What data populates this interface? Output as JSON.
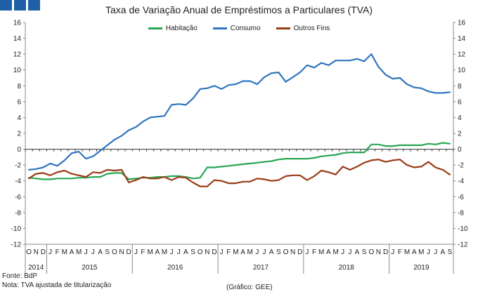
{
  "chart_data": {
    "type": "line",
    "title": "Taxa de Variação Anual de Empréstimos a Particulares (TVA)",
    "ylim": [
      -12,
      16
    ],
    "yticks": [
      -12,
      -10,
      -8,
      -6,
      -4,
      -2,
      0,
      2,
      4,
      6,
      8,
      10,
      12,
      14,
      16
    ],
    "ytick_labels": [
      "-12",
      "-10",
      "-8",
      "-6",
      "-4",
      "-2",
      "0",
      "2",
      "4",
      "6",
      "8",
      "10",
      "12",
      "14",
      "16"
    ],
    "grid": false,
    "legend_position": "top-center",
    "x": [
      "2014-10",
      "2014-11",
      "2014-12",
      "2015-01",
      "2015-02",
      "2015-03",
      "2015-04",
      "2015-05",
      "2015-06",
      "2015-07",
      "2015-08",
      "2015-09",
      "2015-10",
      "2015-11",
      "2015-12",
      "2016-01",
      "2016-02",
      "2016-03",
      "2016-04",
      "2016-05",
      "2016-06",
      "2016-07",
      "2016-08",
      "2016-09",
      "2016-10",
      "2016-11",
      "2016-12",
      "2017-01",
      "2017-02",
      "2017-03",
      "2017-04",
      "2017-05",
      "2017-06",
      "2017-07",
      "2017-08",
      "2017-09",
      "2017-10",
      "2017-11",
      "2017-12",
      "2018-01",
      "2018-02",
      "2018-03",
      "2018-04",
      "2018-05",
      "2018-06",
      "2018-07",
      "2018-08",
      "2018-09",
      "2018-10",
      "2018-11",
      "2018-12",
      "2019-01",
      "2019-02",
      "2019-03",
      "2019-04",
      "2019-05",
      "2019-06",
      "2019-07",
      "2019-08",
      "2019-09"
    ],
    "month_labels": [
      "O",
      "N",
      "D",
      "J",
      "F",
      "M",
      "A",
      "M",
      "J",
      "J",
      "A",
      "S",
      "O",
      "N",
      "D",
      "J",
      "F",
      "M",
      "A",
      "M",
      "J",
      "J",
      "A",
      "S",
      "O",
      "N",
      "D",
      "J",
      "F",
      "M",
      "A",
      "M",
      "J",
      "J",
      "A",
      "S",
      "O",
      "N",
      "D",
      "J",
      "F",
      "M",
      "A",
      "M",
      "J",
      "J",
      "A",
      "S",
      "O",
      "N",
      "D",
      "J",
      "F",
      "M",
      "A",
      "M",
      "J",
      "J",
      "A",
      "S"
    ],
    "year_labels": [
      {
        "label": "2014",
        "from": 0,
        "to": 2
      },
      {
        "label": "2015",
        "from": 3,
        "to": 14
      },
      {
        "label": "2016",
        "from": 15,
        "to": 26
      },
      {
        "label": "2017",
        "from": 27,
        "to": 38
      },
      {
        "label": "2018",
        "from": 39,
        "to": 50
      },
      {
        "label": "2019",
        "from": 51,
        "to": 59
      }
    ],
    "series": [
      {
        "name": "Habitação",
        "color": "#2aa653",
        "values": [
          -3.6,
          -3.7,
          -3.8,
          -3.8,
          -3.7,
          -3.7,
          -3.7,
          -3.6,
          -3.6,
          -3.5,
          -3.5,
          -3.1,
          -3.0,
          -3.0,
          -3.8,
          -3.7,
          -3.6,
          -3.6,
          -3.5,
          -3.5,
          -3.4,
          -3.4,
          -3.5,
          -3.7,
          -3.6,
          -2.3,
          -2.3,
          -2.2,
          -2.1,
          -2.0,
          -1.9,
          -1.8,
          -1.7,
          -1.6,
          -1.5,
          -1.3,
          -1.2,
          -1.2,
          -1.2,
          -1.2,
          -1.1,
          -0.9,
          -0.8,
          -0.7,
          -0.5,
          -0.4,
          -0.4,
          -0.4,
          0.6,
          0.6,
          0.4,
          0.4,
          0.5,
          0.5,
          0.5,
          0.5,
          0.7,
          0.6,
          0.8,
          0.7
        ]
      },
      {
        "name": "Consumo",
        "color": "#2e75c0",
        "values": [
          -2.6,
          -2.5,
          -2.3,
          -1.8,
          -2.1,
          -1.4,
          -0.5,
          -0.3,
          -1.2,
          -0.9,
          -0.2,
          0.5,
          1.2,
          1.7,
          2.4,
          2.8,
          3.5,
          4.0,
          4.1,
          4.2,
          5.6,
          5.7,
          5.6,
          6.4,
          7.6,
          7.7,
          8.0,
          7.6,
          8.1,
          8.2,
          8.6,
          8.6,
          8.2,
          9.1,
          9.6,
          9.7,
          8.5,
          9.1,
          9.7,
          10.6,
          10.3,
          10.9,
          10.6,
          11.2,
          11.2,
          11.2,
          11.4,
          11.1,
          12.0,
          10.4,
          9.4,
          8.9,
          9.0,
          8.2,
          7.8,
          7.7,
          7.3,
          7.1,
          7.1,
          7.2
        ]
      },
      {
        "name": "Outros Fins",
        "color": "#9b3b18",
        "values": [
          -3.7,
          -3.1,
          -3.0,
          -3.3,
          -2.9,
          -2.7,
          -3.1,
          -3.3,
          -3.5,
          -2.9,
          -3.0,
          -2.6,
          -2.7,
          -2.6,
          -4.2,
          -3.9,
          -3.5,
          -3.7,
          -3.7,
          -3.5,
          -3.9,
          -3.5,
          -3.6,
          -4.2,
          -4.7,
          -4.7,
          -3.9,
          -4.0,
          -4.3,
          -4.3,
          -4.1,
          -4.1,
          -3.7,
          -3.8,
          -4.0,
          -3.9,
          -3.4,
          -3.3,
          -3.3,
          -3.9,
          -3.4,
          -2.7,
          -2.9,
          -3.2,
          -2.2,
          -2.6,
          -2.2,
          -1.7,
          -1.4,
          -1.3,
          -1.6,
          -1.4,
          -1.3,
          -2.0,
          -2.3,
          -2.2,
          -1.6,
          -2.3,
          -2.6,
          -3.2
        ]
      }
    ]
  },
  "footer": {
    "source": "Fonte: BdP",
    "note": "Nota: TVA ajustada de titularização",
    "credit": "(Gráfico: GEE)"
  },
  "logo_color": "#1f5fa8"
}
